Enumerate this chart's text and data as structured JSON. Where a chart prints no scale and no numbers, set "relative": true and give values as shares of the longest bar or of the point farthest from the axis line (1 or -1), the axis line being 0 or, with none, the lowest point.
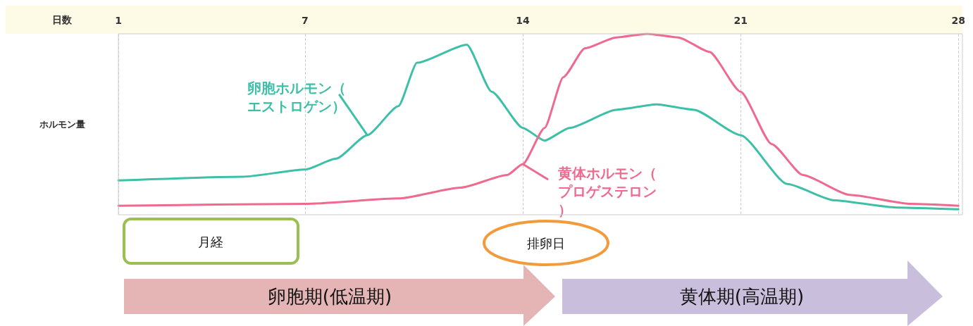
{
  "chart_data": {
    "type": "line",
    "relative": true,
    "xlabel": "日数",
    "ylabel": "ホルモン量",
    "xlim": [
      1,
      28
    ],
    "xticks": [
      1,
      7,
      14,
      21,
      28
    ],
    "grid": "x",
    "marker": "none",
    "line_style": "solid",
    "series": [
      {
        "name": "卵胞ホルモン（エストロゲン）",
        "color": "#3dbfa8",
        "x": [
          1,
          5,
          7,
          8,
          9,
          10,
          10.6,
          12.2,
          13,
          14,
          14.7,
          15.5,
          17,
          18.3,
          19.5,
          21,
          22.5,
          24,
          26,
          28
        ],
        "values": [
          0.19,
          0.21,
          0.25,
          0.31,
          0.44,
          0.6,
          0.84,
          0.94,
          0.68,
          0.48,
          0.41,
          0.48,
          0.58,
          0.61,
          0.58,
          0.44,
          0.17,
          0.08,
          0.04,
          0.03
        ]
      },
      {
        "name": "黄体ホルモン（プロゲステロン）",
        "color": "#ee6a8f",
        "x": [
          1,
          7,
          10,
          12,
          13.5,
          14,
          14.7,
          15.3,
          16,
          17,
          18,
          19,
          20,
          21,
          22,
          23,
          24.5,
          26.5,
          28
        ],
        "values": [
          0.05,
          0.06,
          0.09,
          0.15,
          0.22,
          0.28,
          0.48,
          0.76,
          0.92,
          0.98,
          1,
          0.98,
          0.9,
          0.68,
          0.39,
          0.22,
          0.11,
          0.06,
          0.05
        ]
      }
    ],
    "annotations": [
      "月経",
      "排卵日",
      "卵胞期(低温期)",
      "黄体期(高温期)"
    ]
  }
}
